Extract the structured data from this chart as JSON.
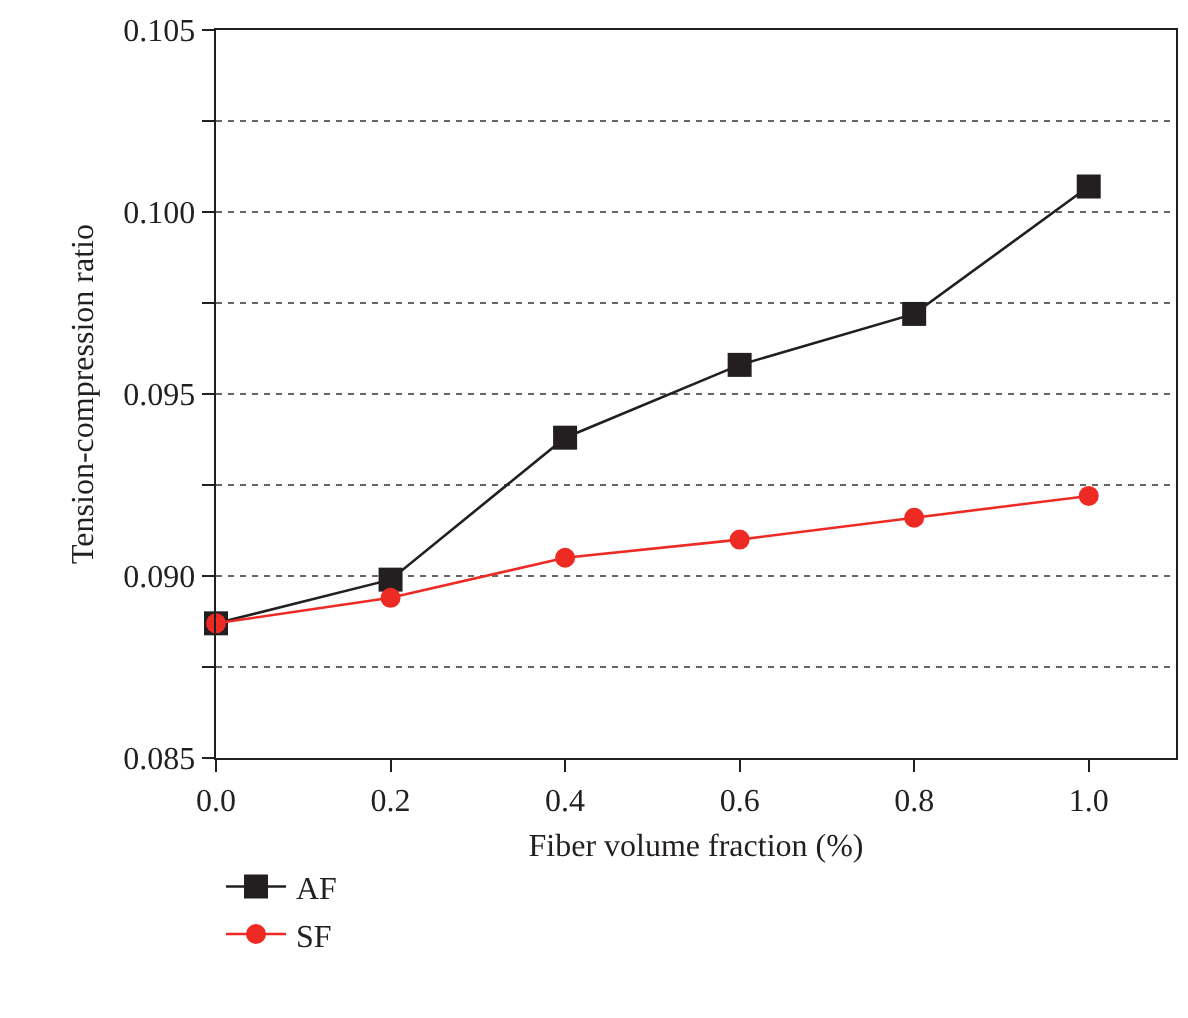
{
  "chart_data": {
    "type": "line",
    "xlabel": "Fiber volume fraction (%)",
    "ylabel": "Tension-compression ratio",
    "x": [
      0,
      0.2,
      0.4,
      0.6,
      0.8,
      1.0
    ],
    "series": [
      {
        "name": "AF",
        "color": "#231f20",
        "marker": "square",
        "values": [
          0.0887,
          0.0899,
          0.0938,
          0.0958,
          0.0972,
          0.1007
        ]
      },
      {
        "name": "SF",
        "color": "#ee2a24",
        "marker": "circle",
        "values": [
          0.0887,
          0.0894,
          0.0905,
          0.091,
          0.0916,
          0.0922
        ]
      }
    ],
    "xlim": [
      0,
      1.1
    ],
    "xticks": [
      {
        "value": 0,
        "label": "0.0"
      },
      0.2,
      0.4,
      0.6,
      0.8,
      {
        "value": 1,
        "label": "1.0"
      }
    ],
    "ylim": [
      0.085,
      0.105
    ],
    "yticks": [
      0.085,
      {
        "value": 0.0875,
        "label": null
      },
      {
        "value": 0.09,
        "label": "0.090"
      },
      {
        "value": 0.0925,
        "label": null
      },
      0.095,
      {
        "value": 0.0975,
        "label": null
      },
      {
        "value": 0.1,
        "label": "0.100"
      },
      {
        "value": 0.1025,
        "label": null
      },
      0.105
    ],
    "grid": "y",
    "legend": "bottom left",
    "line_style": "solid"
  }
}
